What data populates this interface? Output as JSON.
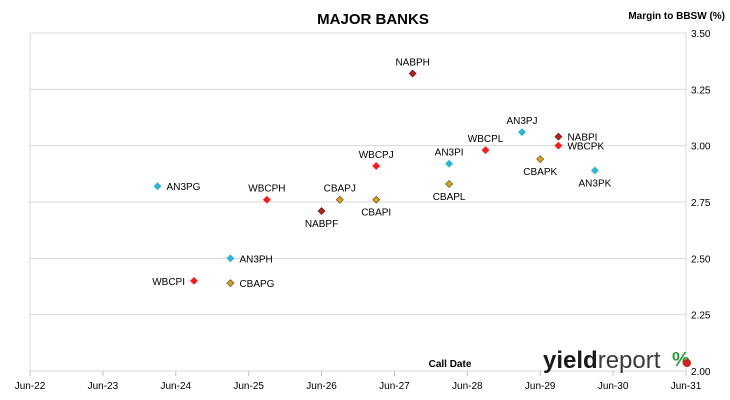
{
  "chart_data": {
    "type": "scatter",
    "title": "MAJOR BANKS",
    "ylabel": "Margin to BBSW (%)",
    "xlabel": "Call Date",
    "ylim": [
      2.0,
      3.5
    ],
    "yticks": [
      "2.00",
      "2.25",
      "2.50",
      "2.75",
      "3.00",
      "3.25",
      "3.50"
    ],
    "xticks": [
      "Jun-22",
      "Jun-23",
      "Jun-24",
      "Jun-25",
      "Jun-26",
      "Jun-27",
      "Jun-28",
      "Jun-29",
      "Jun-30",
      "Jun-31"
    ],
    "xlim": [
      "2022-06",
      "2031-06"
    ],
    "grid": "horizontal",
    "series_colors": {
      "AN3P": "#29b6d9",
      "WBCP": "#ff1a1a",
      "CBAP": "#e0a21c",
      "NABP": "#b51f1f"
    },
    "points": [
      {
        "label": "AN3PG",
        "series": "AN3P",
        "x": "2024-03",
        "y": 2.82,
        "label_pos": "right"
      },
      {
        "label": "AN3PH",
        "series": "AN3P",
        "x": "2025-03",
        "y": 2.5,
        "label_pos": "right"
      },
      {
        "label": "AN3PI",
        "series": "AN3P",
        "x": "2028-03",
        "y": 2.92,
        "label_pos": "above"
      },
      {
        "label": "AN3PJ",
        "series": "AN3P",
        "x": "2029-03",
        "y": 3.06,
        "label_pos": "above"
      },
      {
        "label": "AN3PK",
        "series": "AN3P",
        "x": "2030-03",
        "y": 2.89,
        "label_pos": "below"
      },
      {
        "label": "WBCPI",
        "series": "WBCP",
        "x": "2024-09",
        "y": 2.4,
        "label_pos": "left"
      },
      {
        "label": "WBCPH",
        "series": "WBCP",
        "x": "2025-09",
        "y": 2.76,
        "label_pos": "above"
      },
      {
        "label": "WBCPJ",
        "series": "WBCP",
        "x": "2027-03",
        "y": 2.91,
        "label_pos": "above"
      },
      {
        "label": "WBCPL",
        "series": "WBCP",
        "x": "2028-09",
        "y": 2.98,
        "label_pos": "above"
      },
      {
        "label": "WBCPK",
        "series": "WBCP",
        "x": "2029-09",
        "y": 3.0,
        "label_pos": "right"
      },
      {
        "label": "CBAPG",
        "series": "CBAP",
        "x": "2025-03",
        "y": 2.39,
        "label_pos": "right"
      },
      {
        "label": "CBAPJ",
        "series": "CBAP",
        "x": "2026-09",
        "y": 2.76,
        "label_pos": "above"
      },
      {
        "label": "CBAPI",
        "series": "CBAP",
        "x": "2027-03",
        "y": 2.76,
        "label_pos": "below"
      },
      {
        "label": "CBAPL",
        "series": "CBAP",
        "x": "2028-03",
        "y": 2.83,
        "label_pos": "below"
      },
      {
        "label": "CBAPK",
        "series": "CBAP",
        "x": "2029-06",
        "y": 2.94,
        "label_pos": "below"
      },
      {
        "label": "NABPF",
        "series": "NABP",
        "x": "2026-06",
        "y": 2.71,
        "label_pos": "below"
      },
      {
        "label": "NABPH",
        "series": "NABP",
        "x": "2027-09",
        "y": 3.32,
        "label_pos": "above"
      },
      {
        "label": "NABPI",
        "series": "NABP",
        "x": "2029-09",
        "y": 3.04,
        "label_pos": "right"
      }
    ]
  },
  "logo": {
    "text_dark": "yield",
    "text_light": "report",
    "symbol": "%"
  }
}
